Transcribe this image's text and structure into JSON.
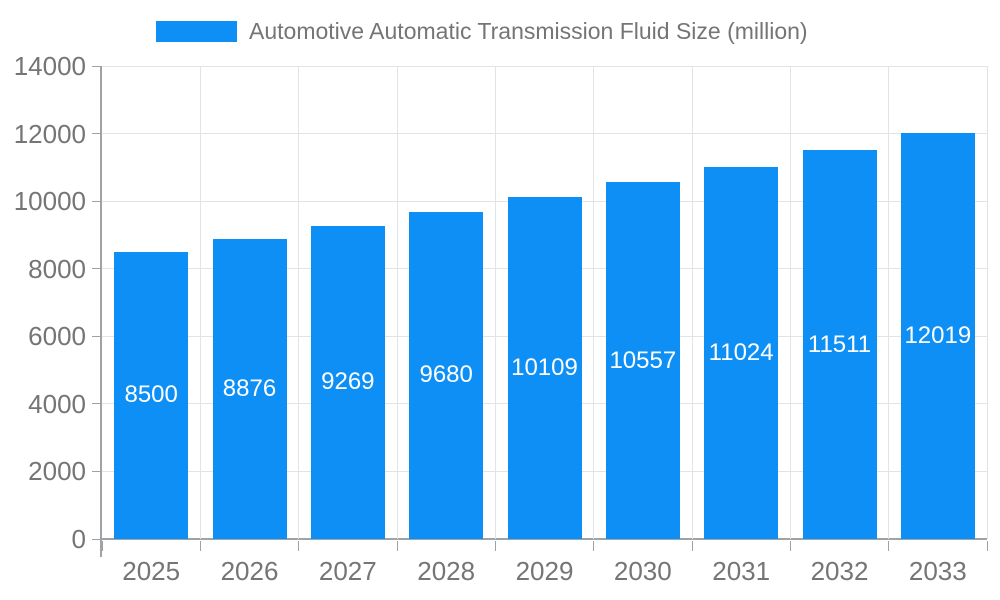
{
  "chart_data": {
    "type": "bar",
    "categories": [
      "2025",
      "2026",
      "2027",
      "2028",
      "2029",
      "2030",
      "2031",
      "2032",
      "2033"
    ],
    "series": [
      {
        "name": "Automotive Automatic Transmission Fluid Size (million)",
        "values": [
          8500,
          8876,
          9269,
          9680,
          10109,
          10557,
          11024,
          11511,
          12019
        ],
        "color": "#0D8FF5"
      }
    ],
    "title": "",
    "xlabel": "",
    "ylabel": "",
    "ylim": [
      0,
      14000
    ],
    "yticks": [
      0,
      2000,
      4000,
      6000,
      8000,
      10000,
      12000,
      14000
    ],
    "grid": true,
    "legend_position": "top",
    "data_labels": {
      "position": "middle",
      "color": "#FFFFFF"
    }
  },
  "legend": {
    "label": "Automotive Automatic Transmission Fluid Size (million)"
  },
  "colors": {
    "background": "#FFFFFF",
    "bar": "#0D8FF5",
    "gridline": "#E3E3E3",
    "axis_line": "#9EA3A8",
    "tick": "#9EA3A8",
    "axis_label": "#757575",
    "data_label": "#FFFFFF"
  }
}
